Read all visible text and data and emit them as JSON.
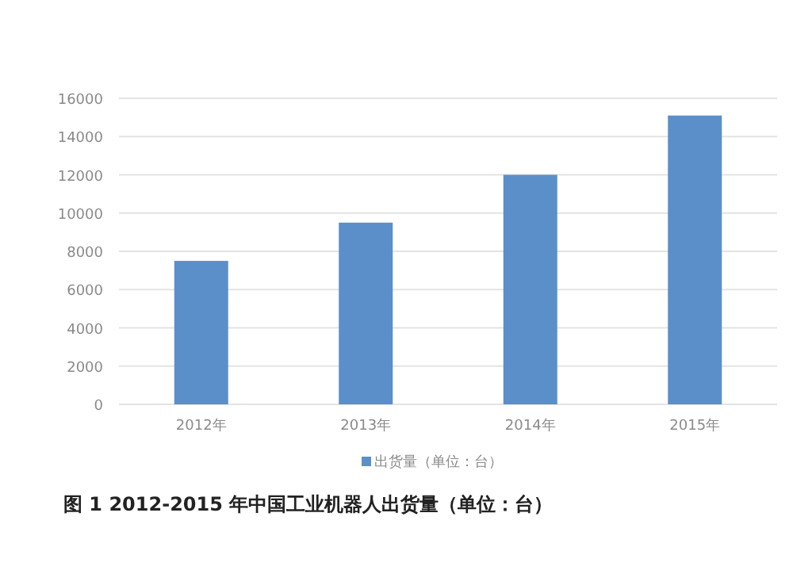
{
  "chart_data": {
    "type": "bar",
    "categories": [
      "2012年",
      "2013年",
      "2014年",
      "2015年"
    ],
    "series": [
      {
        "name": "出货量（单位：台）",
        "color": "#5b8fc9",
        "values": [
          7500,
          9500,
          12000,
          15100
        ]
      }
    ],
    "ylim": [
      0,
      16000
    ],
    "yticks": [
      0,
      2000,
      4000,
      6000,
      8000,
      10000,
      12000,
      14000,
      16000
    ],
    "grid": "y",
    "legend": "bottom",
    "annotations": [
      "图 1 2012-2015 年中国工业机器人出货量（单位：台）"
    ]
  }
}
